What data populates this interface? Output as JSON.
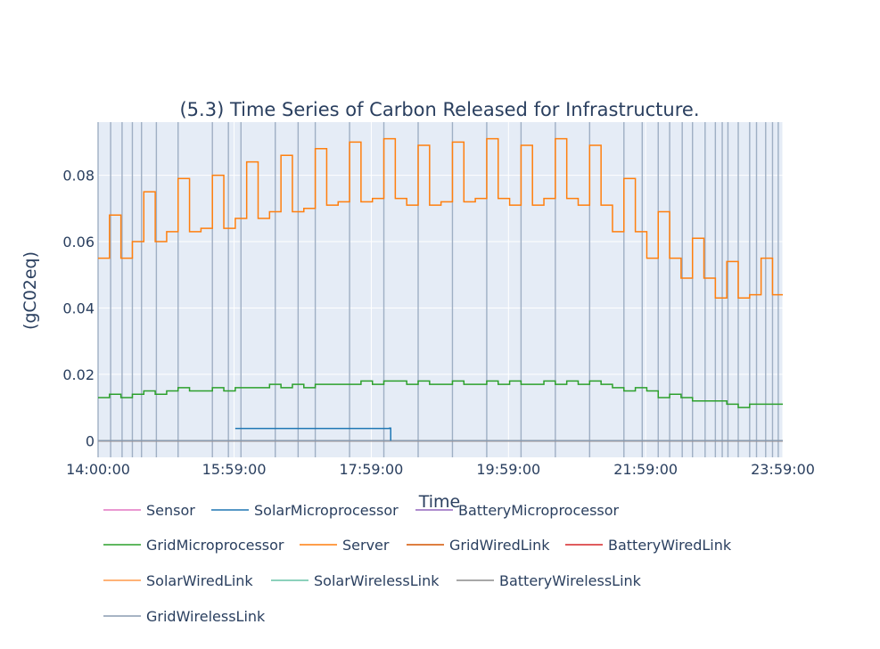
{
  "chart_data": {
    "type": "line",
    "line_shape": "step",
    "title": "(5.3) Time Series of Carbon Released for Infrastructure.",
    "xlabel": "Time",
    "ylabel": "(gC02eq)",
    "x_tick_labels": [
      "14:00:00",
      "15:59:00",
      "17:59:00",
      "19:59:00",
      "21:59:00",
      "23:59:00"
    ],
    "x_ticks_minutes": [
      840,
      959,
      1079,
      1199,
      1319,
      1439
    ],
    "xlim_minutes": [
      840,
      1439
    ],
    "y_tick_labels": [
      "0",
      "0.02",
      "0.04",
      "0.06",
      "0.08"
    ],
    "y_ticks": [
      0,
      0.02,
      0.04,
      0.06,
      0.08
    ],
    "ylim": [
      -0.005,
      0.096
    ],
    "grid": true,
    "legend_placement": "bottom-left",
    "plot_background": "#e5ecf6",
    "event_line_color": "#9fafc4",
    "event_lines_minutes": [
      840,
      851,
      861,
      870,
      878,
      891,
      910,
      940,
      954,
      965,
      995,
      1015,
      1030,
      1060,
      1090,
      1120,
      1150,
      1180,
      1210,
      1240,
      1270,
      1300,
      1316,
      1330,
      1340,
      1351,
      1360,
      1371,
      1380,
      1386,
      1391,
      1400,
      1410,
      1416,
      1424,
      1430,
      1435
    ],
    "series": [
      {
        "name": "Sensor",
        "color": "#e377c2",
        "x": [
          840,
          1439
        ],
        "values": [
          0,
          0
        ]
      },
      {
        "name": "SolarMicroprocessor",
        "color": "#1f77b4",
        "x": [
          960,
          1095,
          1095,
          1096
        ],
        "values": [
          0.0037,
          0.0038,
          0.0038,
          0
        ]
      },
      {
        "name": "BatteryMicroprocessor",
        "color": "#9467bd",
        "x": [
          840,
          1439
        ],
        "values": [
          0,
          0
        ]
      },
      {
        "name": "GridMicroprocessor",
        "color": "#2ca02c",
        "x": [
          840,
          850,
          860,
          870,
          880,
          890,
          900,
          910,
          920,
          930,
          940,
          950,
          960,
          970,
          980,
          990,
          1000,
          1010,
          1020,
          1030,
          1040,
          1050,
          1060,
          1070,
          1080,
          1090,
          1100,
          1110,
          1120,
          1130,
          1140,
          1150,
          1160,
          1170,
          1180,
          1190,
          1200,
          1210,
          1220,
          1230,
          1240,
          1250,
          1260,
          1270,
          1280,
          1290,
          1300,
          1310,
          1320,
          1330,
          1340,
          1350,
          1360,
          1370,
          1380,
          1390,
          1400,
          1410,
          1420,
          1430
        ],
        "values": [
          0.013,
          0.014,
          0.013,
          0.014,
          0.015,
          0.014,
          0.015,
          0.016,
          0.015,
          0.015,
          0.016,
          0.015,
          0.016,
          0.016,
          0.016,
          0.017,
          0.016,
          0.017,
          0.016,
          0.017,
          0.017,
          0.017,
          0.017,
          0.018,
          0.017,
          0.018,
          0.018,
          0.017,
          0.018,
          0.017,
          0.017,
          0.018,
          0.017,
          0.017,
          0.018,
          0.017,
          0.018,
          0.017,
          0.017,
          0.018,
          0.017,
          0.018,
          0.017,
          0.018,
          0.017,
          0.016,
          0.015,
          0.016,
          0.015,
          0.013,
          0.014,
          0.013,
          0.012,
          0.012,
          0.012,
          0.011,
          0.01,
          0.011,
          0.011,
          0.011
        ]
      },
      {
        "name": "Server",
        "color": "#ff7f0e",
        "x": [
          840,
          850,
          860,
          870,
          880,
          890,
          900,
          910,
          920,
          930,
          940,
          950,
          960,
          970,
          980,
          990,
          1000,
          1010,
          1020,
          1030,
          1040,
          1050,
          1060,
          1070,
          1080,
          1090,
          1100,
          1110,
          1120,
          1130,
          1140,
          1150,
          1160,
          1170,
          1180,
          1190,
          1200,
          1210,
          1220,
          1230,
          1240,
          1250,
          1260,
          1270,
          1280,
          1290,
          1300,
          1310,
          1320,
          1330,
          1340,
          1350,
          1360,
          1370,
          1380,
          1390,
          1400,
          1410,
          1420,
          1430
        ],
        "values": [
          0.055,
          0.068,
          0.055,
          0.06,
          0.075,
          0.06,
          0.063,
          0.079,
          0.063,
          0.064,
          0.08,
          0.064,
          0.067,
          0.084,
          0.067,
          0.069,
          0.086,
          0.069,
          0.07,
          0.088,
          0.071,
          0.072,
          0.09,
          0.072,
          0.073,
          0.091,
          0.073,
          0.071,
          0.089,
          0.071,
          0.072,
          0.09,
          0.072,
          0.073,
          0.091,
          0.073,
          0.071,
          0.089,
          0.071,
          0.073,
          0.091,
          0.073,
          0.071,
          0.089,
          0.071,
          0.063,
          0.079,
          0.063,
          0.055,
          0.069,
          0.055,
          0.049,
          0.061,
          0.049,
          0.043,
          0.054,
          0.043,
          0.044,
          0.055,
          0.044
        ]
      },
      {
        "name": "GridWiredLink",
        "color": "#d45500",
        "x": [
          840,
          1439
        ],
        "values": [
          0,
          0
        ]
      },
      {
        "name": "BatteryWiredLink",
        "color": "#d62728",
        "x": [
          840,
          1439
        ],
        "values": [
          0,
          0
        ]
      },
      {
        "name": "SolarWiredLink",
        "color": "#ff9a4a",
        "x": [
          840,
          1439
        ],
        "values": [
          0,
          0
        ]
      },
      {
        "name": "SolarWirelessLink",
        "color": "#66c2a5",
        "x": [
          840,
          1439
        ],
        "values": [
          0,
          0
        ]
      },
      {
        "name": "BatteryWirelessLink",
        "color": "#8c8c8c",
        "x": [
          840,
          1439
        ],
        "values": [
          0,
          0
        ]
      },
      {
        "name": "GridWirelessLink",
        "color": "#8a9bb1",
        "x": [
          840,
          1439
        ],
        "values": [
          0,
          0
        ]
      }
    ]
  }
}
